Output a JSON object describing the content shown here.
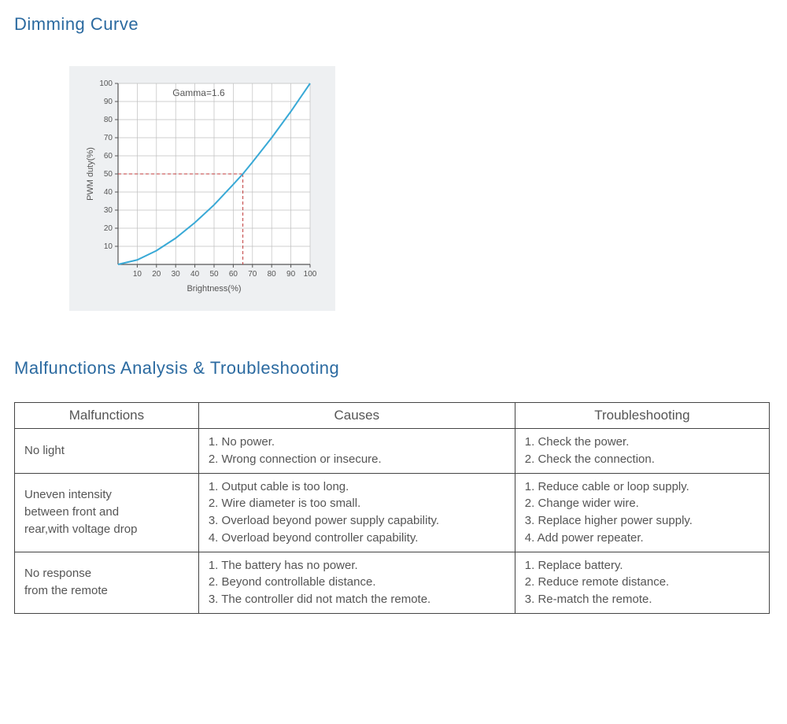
{
  "heading_color": "#2b6aa0",
  "body_text_color": "#555555",
  "section1": {
    "title": "Dimming Curve"
  },
  "chart": {
    "type": "line",
    "background_color": "#eef0f2",
    "plot_background": "#ffffff",
    "grid_color": "#bfbfbf",
    "axis_color": "#555555",
    "axis_label_color": "#555555",
    "axis_label_fontsize": 11,
    "tick_fontsize": 10,
    "annotation": "Gamma=1.6",
    "annotation_fontsize": 12,
    "xlabel": "Brightness(%)",
    "ylabel": "PWM duty(%)",
    "xlim": [
      0,
      100
    ],
    "ylim": [
      0,
      100
    ],
    "x_ticks": [
      10,
      20,
      30,
      40,
      50,
      60,
      70,
      80,
      90,
      100
    ],
    "y_ticks": [
      10,
      20,
      30,
      40,
      50,
      60,
      70,
      80,
      90,
      100
    ],
    "line_color": "#39a9d6",
    "line_width": 2,
    "curve_points": [
      [
        0,
        0
      ],
      [
        10,
        2.5
      ],
      [
        20,
        7.6
      ],
      [
        30,
        14.5
      ],
      [
        40,
        23.1
      ],
      [
        50,
        32.9
      ],
      [
        60,
        44.2
      ],
      [
        65,
        50
      ],
      [
        70,
        56.5
      ],
      [
        80,
        70.0
      ],
      [
        90,
        84.5
      ],
      [
        100,
        100
      ]
    ],
    "ref_line_color": "#c03a3a",
    "ref_y": 50,
    "ref_x": 65
  },
  "section2": {
    "title": "Malfunctions Analysis & Troubleshooting"
  },
  "table": {
    "columns": [
      "Malfunctions",
      "Causes",
      "Troubleshooting"
    ],
    "rows": [
      {
        "malfunction": "No light",
        "causes": "1. No power.\n2. Wrong connection or insecure.",
        "troubleshooting": "1. Check the power.\n2. Check the connection."
      },
      {
        "malfunction": "Uneven intensity\nbetween front and\nrear,with voltage drop",
        "causes": "1. Output cable is too long.\n2. Wire diameter is too small.\n3. Overload beyond power supply capability.\n4. Overload beyond controller capability.",
        "troubleshooting": "1. Reduce cable or loop supply.\n2. Change wider wire.\n3. Replace higher power supply.\n4. Add power repeater."
      },
      {
        "malfunction": "No response\nfrom the remote",
        "causes": "1. The battery has no power.\n2. Beyond controllable distance.\n3. The controller did not match the remote.",
        "troubleshooting": "1. Replace battery.\n2. Reduce remote distance.\n3. Re-match the remote."
      }
    ]
  }
}
